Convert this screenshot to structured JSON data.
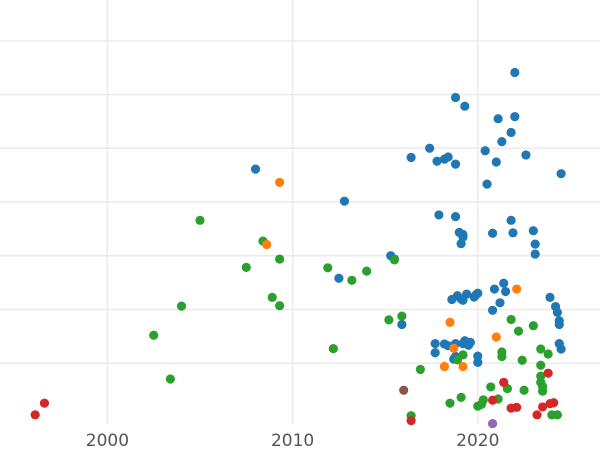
{
  "chart_data": {
    "type": "scatter",
    "title": "",
    "xlabel": "",
    "ylabel": "",
    "xlim": [
      1994.2,
      2026.6
    ],
    "ylim": [
      0,
      1
    ],
    "grid": true,
    "legend": "none",
    "xticks": [
      2000,
      2010,
      2020
    ],
    "xtick_labels": [
      "2000",
      "2010",
      "2020"
    ],
    "yticks": [
      0.128,
      0.257,
      0.386,
      0.515,
      0.644,
      0.773,
      0.902
    ],
    "series": [
      {
        "color": "#1f77b4",
        "x": [
          2008.0,
          2012.8,
          2012.5,
          2015.3,
          2015.5,
          2015.9,
          2016.4,
          2017.4,
          2017.8,
          2017.9,
          2018.2,
          2018.4,
          2018.8,
          2018.8,
          2018.8,
          2019.2,
          2019.2,
          2019.3,
          2019.0,
          2019.1,
          2018.9,
          2018.6,
          2019.4,
          2019.8,
          2019.9,
          2020.0,
          2020.4,
          2020.5,
          2020.8,
          2020.8,
          2020.9,
          2021.0,
          2021.1,
          2021.2,
          2021.3,
          2021.4,
          2021.5,
          2021.8,
          2021.8,
          2021.9,
          2022.0,
          2022.0,
          2018.4,
          2018.8,
          2019.1,
          2019.2,
          2019.5,
          2019.3,
          2019.6,
          2020.0,
          2018.7,
          2018.8,
          2018.2,
          2017.7,
          2017.7,
          2022.6,
          2023.0,
          2023.1,
          2023.1,
          2023.9,
          2024.2,
          2024.3,
          2024.4,
          2024.4,
          2024.4,
          2024.5,
          2024.5,
          2019.2,
          2020.0
        ],
        "y": [
          0.594,
          0.517,
          0.332,
          0.386,
          0.378,
          0.221,
          0.622,
          0.644,
          0.613,
          0.484,
          0.618,
          0.623,
          0.606,
          0.766,
          0.48,
          0.437,
          0.431,
          0.745,
          0.442,
          0.415,
          0.29,
          0.281,
          0.294,
          0.287,
          0.292,
          0.296,
          0.638,
          0.558,
          0.44,
          0.255,
          0.306,
          0.611,
          0.715,
          0.273,
          0.66,
          0.32,
          0.3,
          0.471,
          0.682,
          0.441,
          0.72,
          0.826,
          0.17,
          0.175,
          0.282,
          0.175,
          0.171,
          0.182,
          0.178,
          0.13,
          0.138,
          0.144,
          0.174,
          0.175,
          0.153,
          0.628,
          0.446,
          0.414,
          0.39,
          0.286,
          0.264,
          0.25,
          0.23,
          0.221,
          0.175,
          0.162,
          0.583,
          0.279,
          0.145
        ]
      },
      {
        "color": "#2ca02c",
        "x": [
          2002.5,
          2003.4,
          2004.0,
          2005.0,
          2007.5,
          2008.4,
          2008.9,
          2009.3,
          2009.3,
          2011.9,
          2012.2,
          2013.2,
          2014.0,
          2015.2,
          2015.5,
          2015.9,
          2016.4,
          2016.9,
          2018.5,
          2019.1,
          2019.2,
          2020.0,
          2020.2,
          2020.3,
          2020.7,
          2021.1,
          2021.3,
          2021.3,
          2021.6,
          2021.8,
          2022.2,
          2022.4,
          2022.5,
          2023.0,
          2023.4,
          2023.4,
          2023.4,
          2023.5,
          2023.5,
          2023.4,
          2023.8,
          2024.0,
          2024.3,
          2018.9
        ],
        "y": [
          0.195,
          0.09,
          0.265,
          0.471,
          0.358,
          0.421,
          0.286,
          0.266,
          0.378,
          0.357,
          0.163,
          0.327,
          0.349,
          0.232,
          0.376,
          0.241,
          0.002,
          0.113,
          0.032,
          0.046,
          0.148,
          0.025,
          0.029,
          0.04,
          0.071,
          0.042,
          0.144,
          0.155,
          0.067,
          0.233,
          0.205,
          0.135,
          0.063,
          0.218,
          0.162,
          0.123,
          0.097,
          0.072,
          0.061,
          0.082,
          0.15,
          0.004,
          0.004,
          0.136
        ]
      },
      {
        "color": "#ff7f0e",
        "x": [
          2008.6,
          2009.3,
          2018.2,
          2019.2,
          2018.5,
          2018.7,
          2021.0,
          2022.1
        ],
        "y": [
          0.413,
          0.562,
          0.12,
          0.12,
          0.226,
          0.164,
          0.191,
          0.306
        ]
      },
      {
        "color": "#d62728",
        "x": [
          1996.1,
          1996.6,
          2016.4,
          2021.4,
          2021.8,
          2022.1,
          2023.2,
          2023.5,
          2023.9,
          2024.1,
          2023.8,
          2020.8
        ],
        "y": [
          0.004,
          0.032,
          -0.01,
          0.082,
          0.02,
          0.022,
          0.004,
          0.023,
          0.031,
          0.033,
          0.104,
          0.039
        ]
      },
      {
        "color": "#8c564b",
        "x": [
          2016.0
        ],
        "y": [
          0.063
        ]
      },
      {
        "color": "#9467bd",
        "x": [
          2020.8
        ],
        "y": [
          -0.017
        ]
      }
    ]
  },
  "axis": {
    "x_labels": [
      "2000",
      "2010",
      "2020"
    ]
  }
}
